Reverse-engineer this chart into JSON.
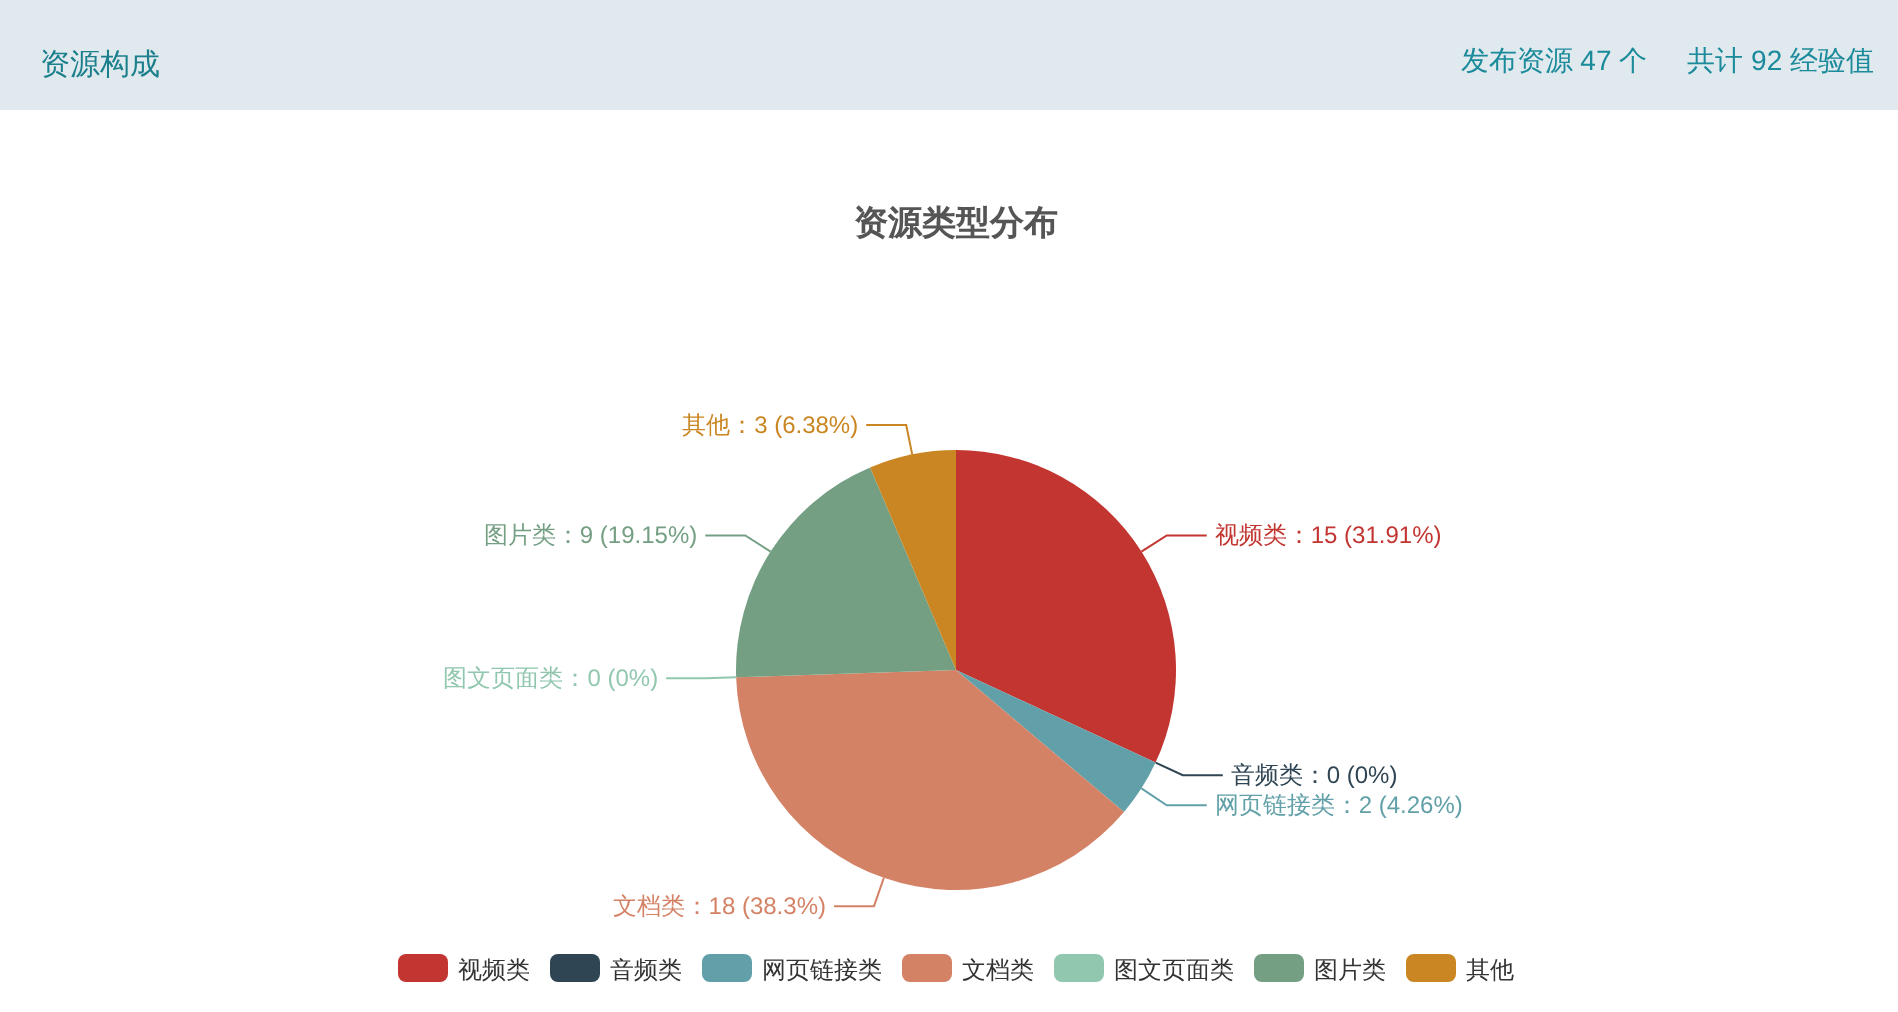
{
  "chart_data": {
    "type": "pie",
    "title": "资源类型分布",
    "categories": [
      "视频类",
      "音频类",
      "网页链接类",
      "文档类",
      "图文页面类",
      "图片类",
      "其他"
    ],
    "values": [
      15,
      0,
      2,
      18,
      0,
      9,
      3
    ],
    "colors": [
      "#c23531",
      "#2f4554",
      "#61a0a8",
      "#d48265",
      "#91c7ae",
      "#749f83",
      "#ca8622"
    ],
    "value_labels": [
      "视频类：15 (31.91%)",
      "音频类：0 (0%)",
      "网页链接类：2 (4.26%)",
      "文档类：18 (38.3%)",
      "图文页面类：0 (0%)",
      "图片类：9 (19.15%)",
      "其他：3 (6.38%)"
    ],
    "legend": "bottom",
    "annotations": [
      "资源构成",
      "发布资源 47 个",
      "共计 92 经验值"
    ]
  }
}
